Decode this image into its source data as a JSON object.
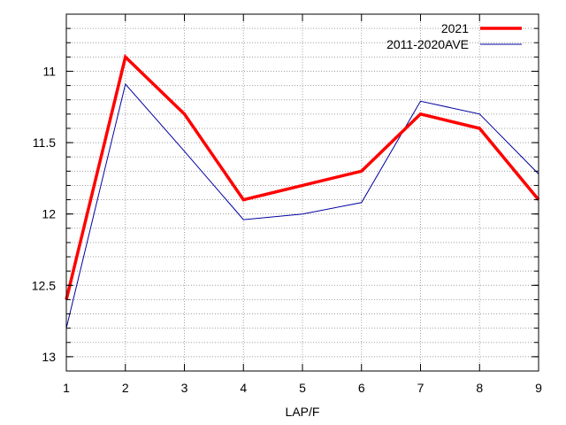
{
  "chart_data": {
    "type": "line",
    "title": "",
    "xlabel": "LAP/F",
    "ylabel": "",
    "x": [
      1,
      2,
      3,
      4,
      5,
      6,
      7,
      8,
      9
    ],
    "xlim": [
      1,
      9
    ],
    "ylim": [
      13.1,
      10.6
    ],
    "y_inverted": true,
    "x_ticks": [
      1,
      2,
      3,
      4,
      5,
      6,
      7,
      8,
      9
    ],
    "y_ticks": [
      11,
      11.5,
      12,
      12.5,
      13
    ],
    "y_minor_step": 0.1,
    "grid": true,
    "legend_position": "top-right",
    "series": [
      {
        "name": "2021",
        "values": [
          12.6,
          10.9,
          11.3,
          11.9,
          11.8,
          11.7,
          11.3,
          11.4,
          11.9
        ],
        "color": "#ff0000"
      },
      {
        "name": "2011-2020AVE",
        "values": [
          12.8,
          11.09,
          11.56,
          12.04,
          12.0,
          11.92,
          11.21,
          11.3,
          11.72
        ],
        "color": "#0000a0"
      }
    ]
  }
}
